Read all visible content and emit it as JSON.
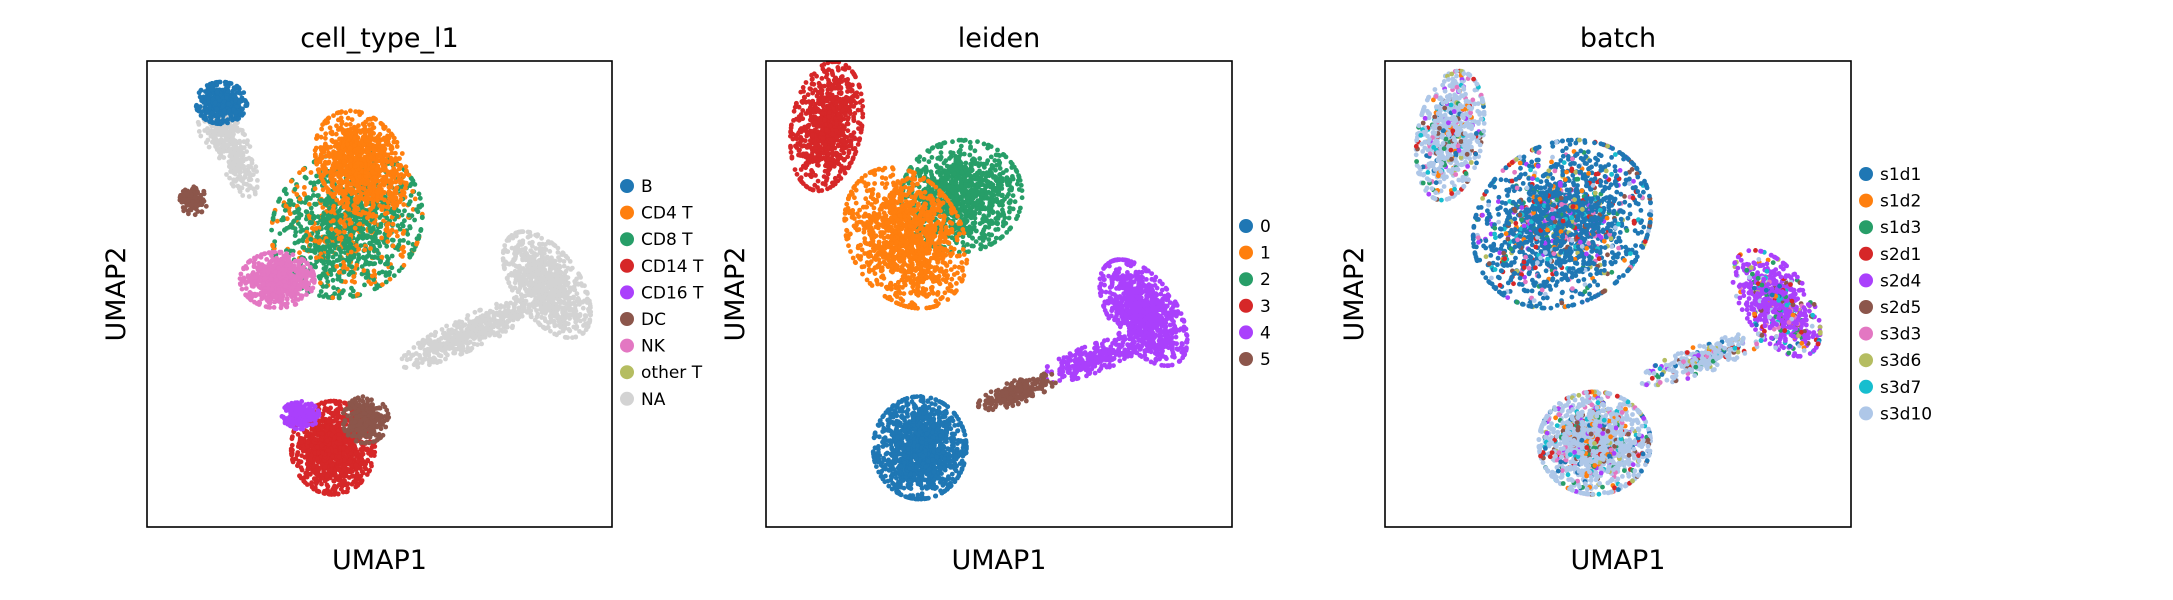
{
  "chart_data": [
    {
      "type": "scatter",
      "title": "cell_type_l1",
      "xlabel": "UMAP1",
      "ylabel": "UMAP2",
      "ticks": "none",
      "grid": false,
      "legend_position": "right",
      "categories": [
        {
          "name": "B",
          "color": "#1f77b4"
        },
        {
          "name": "CD4 T",
          "color": "#ff7f0e"
        },
        {
          "name": "CD8 T",
          "color": "#279e68"
        },
        {
          "name": "CD14 T",
          "color": "#d62728"
        },
        {
          "name": "CD16 T",
          "color": "#aa40fc"
        },
        {
          "name": "DC",
          "color": "#8c564b"
        },
        {
          "name": "NK",
          "color": "#e377c2"
        },
        {
          "name": "other T",
          "color": "#b5bd61"
        },
        {
          "name": "NA",
          "color": "#d3d3d3"
        }
      ]
    },
    {
      "type": "scatter",
      "title": "leiden",
      "xlabel": "UMAP1",
      "ylabel": "UMAP2",
      "ticks": "none",
      "grid": false,
      "legend_position": "right",
      "categories": [
        {
          "name": "0",
          "color": "#1f77b4"
        },
        {
          "name": "1",
          "color": "#ff7f0e"
        },
        {
          "name": "2",
          "color": "#279e68"
        },
        {
          "name": "3",
          "color": "#d62728"
        },
        {
          "name": "4",
          "color": "#aa40fc"
        },
        {
          "name": "5",
          "color": "#8c564b"
        }
      ]
    },
    {
      "type": "scatter",
      "title": "batch",
      "xlabel": "UMAP1",
      "ylabel": "UMAP2",
      "ticks": "none",
      "grid": false,
      "legend_position": "right",
      "categories": [
        {
          "name": "s1d1",
          "color": "#1f77b4"
        },
        {
          "name": "s1d2",
          "color": "#ff7f0e"
        },
        {
          "name": "s1d3",
          "color": "#279e68"
        },
        {
          "name": "s2d1",
          "color": "#d62728"
        },
        {
          "name": "s2d4",
          "color": "#aa40fc"
        },
        {
          "name": "s2d5",
          "color": "#8c564b"
        },
        {
          "name": "s3d3",
          "color": "#e377c2"
        },
        {
          "name": "s3d6",
          "color": "#b5bd61"
        },
        {
          "name": "s3d7",
          "color": "#17becf"
        },
        {
          "name": "s3d10",
          "color": "#aec7e8"
        }
      ]
    }
  ]
}
